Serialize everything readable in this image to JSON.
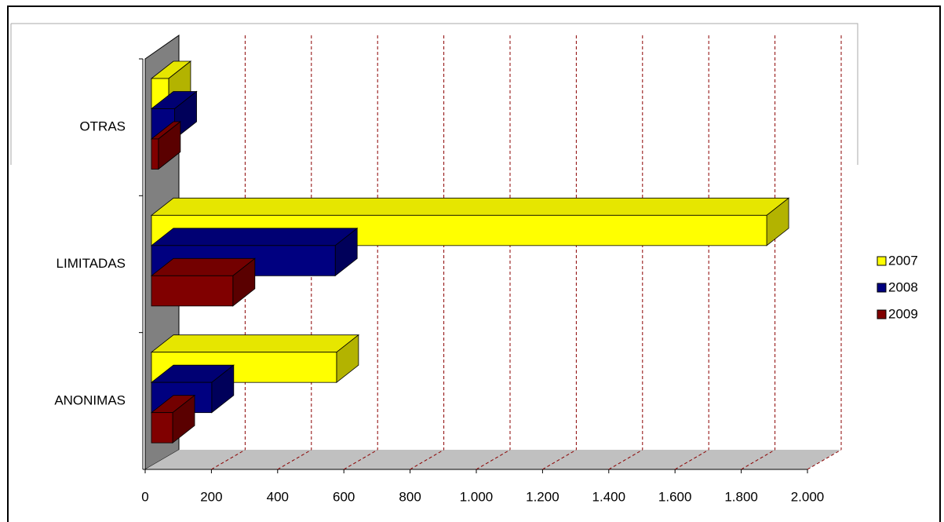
{
  "chart_data": {
    "type": "bar3d-horizontal",
    "categories": [
      "ANONIMAS",
      "LIMITADAS",
      "OTRAS"
    ],
    "series": [
      {
        "name": "2007",
        "color": "#ffff00",
        "values": [
          559,
          1858,
          52
        ]
      },
      {
        "name": "2008",
        "color": "#000080",
        "values": [
          182,
          555,
          70
        ]
      },
      {
        "name": "2009",
        "color": "#800000",
        "values": [
          64,
          246,
          21
        ]
      }
    ],
    "xlim": [
      0,
      2000
    ],
    "xticks": [
      0,
      200,
      400,
      600,
      800,
      {
        "value": 1000,
        "label": "1.000"
      },
      {
        "value": 1200,
        "label": "1.200"
      },
      {
        "value": 1400,
        "label": "1.400"
      },
      {
        "value": 1600,
        "label": "1.600"
      },
      {
        "value": 1800,
        "label": "1.800"
      },
      {
        "value": 2000,
        "label": "2.000"
      }
    ],
    "grid": true,
    "legend": "right"
  }
}
